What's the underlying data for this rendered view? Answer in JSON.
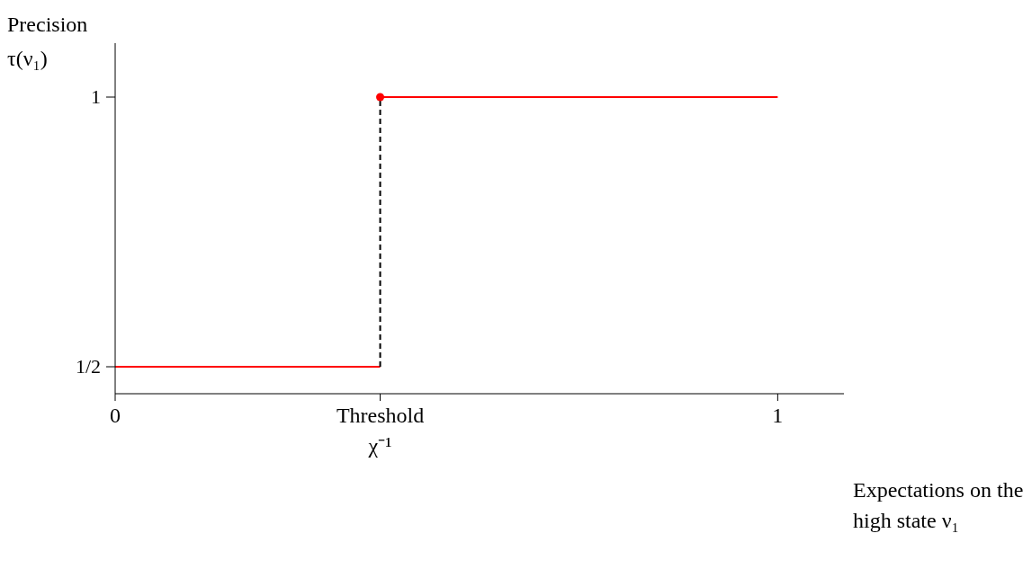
{
  "chart_data": {
    "type": "line",
    "xlabel": "Expectations on the high state ν₁",
    "ylabel": "Precision τ(ν₁)",
    "xlim": [
      0,
      1.1
    ],
    "ylim": [
      0.45,
      1.1
    ],
    "xticks": [
      0,
      {
        "value": 0.4,
        "label": "Threshold\nχ⁻¹"
      },
      1
    ],
    "yticks": [
      {
        "value": 0.5,
        "label": "1/2"
      },
      1
    ],
    "grid": false,
    "series": [
      {
        "color": "#ff0000",
        "x": [
          0,
          0.4
        ],
        "values": [
          0.5,
          0.5
        ],
        "marker": "none",
        "line_style": "solid"
      },
      {
        "color": "#ff0000",
        "x": [
          0.4,
          1
        ],
        "values": [
          1,
          1
        ],
        "marker": "none",
        "line_style": "solid"
      },
      {
        "color": "#000000",
        "x": [
          0.4,
          0.4
        ],
        "values": [
          0.5,
          1
        ],
        "marker": "none",
        "line_style": "dashed"
      },
      {
        "type": "scatter",
        "color": "#ff0000",
        "x": [
          0.4
        ],
        "values": [
          1
        ],
        "marker": "circle"
      }
    ]
  }
}
